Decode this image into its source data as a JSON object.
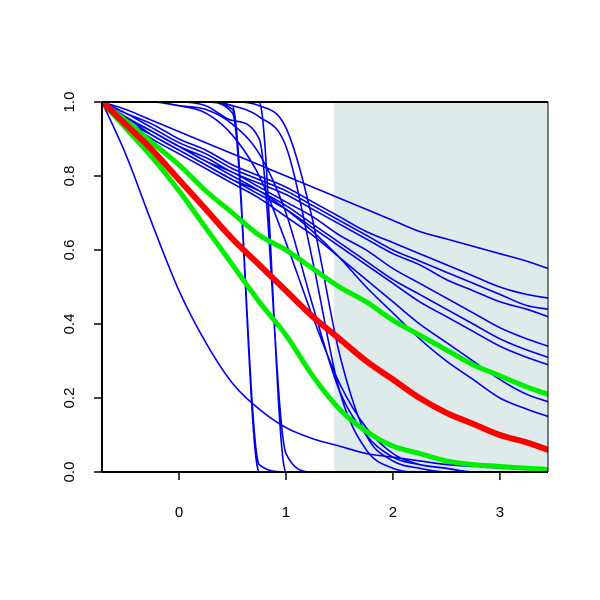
{
  "chart_data": {
    "type": "line",
    "title": "",
    "xlabel": "",
    "ylabel": "",
    "xlim": [
      -0.72,
      3.45
    ],
    "ylim": [
      0,
      1
    ],
    "x_ticks": [
      0,
      1,
      2,
      3
    ],
    "x_tick_labels": [
      "0",
      "1",
      "2",
      "3"
    ],
    "y_ticks": [
      0,
      0.2,
      0.4,
      0.6,
      0.8,
      1.0
    ],
    "y_tick_labels": [
      "0.0",
      "0.2",
      "0.4",
      "0.6",
      "0.8",
      "1.0"
    ],
    "grid": false,
    "legend": "none",
    "colors": {
      "thin_curves": "#0000ee",
      "mean_curve": "#ff0000",
      "band_curves": "#00ee00",
      "shaded_region": "#dfeaea",
      "axes": "#000000"
    },
    "shaded_region_x": [
      1.45,
      3.45
    ],
    "x": [
      -0.72,
      -0.5,
      -0.25,
      0,
      0.25,
      0.5,
      0.75,
      1,
      1.25,
      1.5,
      1.75,
      2,
      2.25,
      2.5,
      2.75,
      3,
      3.25,
      3.45
    ],
    "series": [
      {
        "style": "mean",
        "values": [
          1.0,
          0.94,
          0.87,
          0.79,
          0.71,
          0.63,
          0.56,
          0.49,
          0.42,
          0.36,
          0.3,
          0.25,
          0.2,
          0.16,
          0.13,
          0.1,
          0.08,
          0.06
        ]
      },
      {
        "style": "band",
        "values": [
          1.0,
          0.95,
          0.89,
          0.83,
          0.76,
          0.7,
          0.64,
          0.6,
          0.55,
          0.5,
          0.46,
          0.41,
          0.37,
          0.33,
          0.29,
          0.26,
          0.23,
          0.21
        ]
      },
      {
        "style": "band",
        "values": [
          1.0,
          0.93,
          0.85,
          0.76,
          0.66,
          0.56,
          0.46,
          0.37,
          0.26,
          0.17,
          0.11,
          0.07,
          0.05,
          0.03,
          0.02,
          0.015,
          0.01,
          0.007
        ]
      },
      {
        "style": "thin",
        "values": [
          1.0,
          0.98,
          0.95,
          0.92,
          0.89,
          0.86,
          0.83,
          0.8,
          0.77,
          0.74,
          0.71,
          0.68,
          0.65,
          0.63,
          0.61,
          0.59,
          0.57,
          0.55
        ]
      },
      {
        "style": "thin",
        "values": [
          1.0,
          0.97,
          0.94,
          0.9,
          0.87,
          0.83,
          0.8,
          0.77,
          0.73,
          0.69,
          0.65,
          0.62,
          0.59,
          0.56,
          0.53,
          0.5,
          0.48,
          0.47
        ]
      },
      {
        "style": "thin",
        "values": [
          1.0,
          0.97,
          0.93,
          0.89,
          0.86,
          0.82,
          0.79,
          0.76,
          0.72,
          0.68,
          0.64,
          0.6,
          0.57,
          0.54,
          0.51,
          0.48,
          0.45,
          0.44
        ]
      },
      {
        "style": "thin",
        "values": [
          1.0,
          0.96,
          0.92,
          0.88,
          0.85,
          0.81,
          0.78,
          0.75,
          0.71,
          0.67,
          0.63,
          0.59,
          0.56,
          0.52,
          0.49,
          0.46,
          0.44,
          0.42
        ]
      },
      {
        "style": "thin",
        "values": [
          1.0,
          0.96,
          0.92,
          0.88,
          0.84,
          0.81,
          0.77,
          0.73,
          0.69,
          0.64,
          0.6,
          0.55,
          0.51,
          0.47,
          0.43,
          0.39,
          0.36,
          0.34
        ]
      },
      {
        "style": "thin",
        "values": [
          1.0,
          0.96,
          0.91,
          0.87,
          0.83,
          0.79,
          0.76,
          0.72,
          0.67,
          0.62,
          0.57,
          0.52,
          0.48,
          0.44,
          0.4,
          0.36,
          0.33,
          0.31
        ]
      },
      {
        "style": "thin",
        "values": [
          1.0,
          0.95,
          0.91,
          0.87,
          0.83,
          0.79,
          0.75,
          0.71,
          0.66,
          0.61,
          0.56,
          0.51,
          0.46,
          0.42,
          0.38,
          0.34,
          0.31,
          0.29
        ]
      },
      {
        "style": "thin",
        "values": [
          1.0,
          0.95,
          0.9,
          0.86,
          0.82,
          0.78,
          0.74,
          0.69,
          0.64,
          0.58,
          0.52,
          0.46,
          0.4,
          0.35,
          0.3,
          0.25,
          0.21,
          0.19
        ]
      },
      {
        "style": "thin",
        "values": [
          1.0,
          0.96,
          0.92,
          0.88,
          0.84,
          0.8,
          0.76,
          0.71,
          0.65,
          0.58,
          0.5,
          0.43,
          0.36,
          0.3,
          0.25,
          0.2,
          0.17,
          0.15
        ]
      },
      {
        "style": "thin",
        "values": [
          1.0,
          0.86,
          0.67,
          0.49,
          0.35,
          0.24,
          0.17,
          0.12,
          0.09,
          0.07,
          0.05,
          0.04,
          0.03,
          0.02,
          0.015,
          0.01,
          0.007,
          0.005
        ]
      },
      {
        "style": "thin",
        "values": [
          1.0,
          1.0,
          1.0,
          1.0,
          1.0,
          1.0,
          0.99,
          0.93,
          0.68,
          0.32,
          0.1,
          0.03,
          0.01,
          0.0,
          0.0,
          0.0,
          0.0,
          0.0
        ]
      },
      {
        "style": "thin",
        "values": [
          1.0,
          1.0,
          1.0,
          0.99,
          0.97,
          0.91,
          0.8,
          0.62,
          0.42,
          0.24,
          0.12,
          0.05,
          0.02,
          0.01,
          0.0,
          0.0,
          0.0,
          0.0
        ]
      },
      {
        "style": "thin",
        "values": [
          1.0,
          1.0,
          1.0,
          1.0,
          1.0,
          0.99,
          0.96,
          0.88,
          0.57,
          0.22,
          0.06,
          0.01,
          0.0,
          0.0,
          0.0,
          0.0,
          0.0,
          0.0
        ]
      },
      {
        "style": "thin",
        "values": [
          1.0,
          1.0,
          1.0,
          1.0,
          1.0,
          1.0,
          1.0,
          0.0,
          0.0,
          0.0,
          0.0,
          0.0,
          0.0,
          0.0,
          0.0,
          0.0,
          0.0,
          0.0
        ]
      },
      {
        "style": "thin",
        "values": [
          1.0,
          1.0,
          1.0,
          1.0,
          1.0,
          0.99,
          0.0,
          0.0,
          0.0,
          0.0,
          0.0,
          0.0,
          0.0,
          0.0,
          0.0,
          0.0,
          0.0,
          0.0
        ]
      },
      {
        "style": "thin",
        "values": [
          1.0,
          1.0,
          1.0,
          1.0,
          1.0,
          0.98,
          0.0,
          0.0,
          0.0,
          0.0,
          0.0,
          0.0,
          0.0,
          0.0,
          0.0,
          0.0,
          0.0,
          0.0
        ]
      },
      {
        "style": "thin",
        "values": [
          1.0,
          1.0,
          1.0,
          1.0,
          1.0,
          0.97,
          0.02,
          0.0,
          0.0,
          0.0,
          0.0,
          0.0,
          0.0,
          0.0,
          0.0,
          0.0,
          0.0,
          0.0
        ]
      },
      {
        "style": "thin",
        "values": [
          1.0,
          1.0,
          1.0,
          1.0,
          0.99,
          0.95,
          0.9,
          0.05,
          0.0,
          0.0,
          0.0,
          0.0,
          0.0,
          0.0,
          0.0,
          0.0,
          0.0,
          0.0
        ]
      },
      {
        "style": "thin",
        "values": [
          1.0,
          1.0,
          1.0,
          0.99,
          0.98,
          0.94,
          0.86,
          0.7,
          0.45,
          0.22,
          0.1,
          0.04,
          0.02,
          0.01,
          0.0,
          0.0,
          0.0,
          0.0
        ]
      }
    ]
  }
}
